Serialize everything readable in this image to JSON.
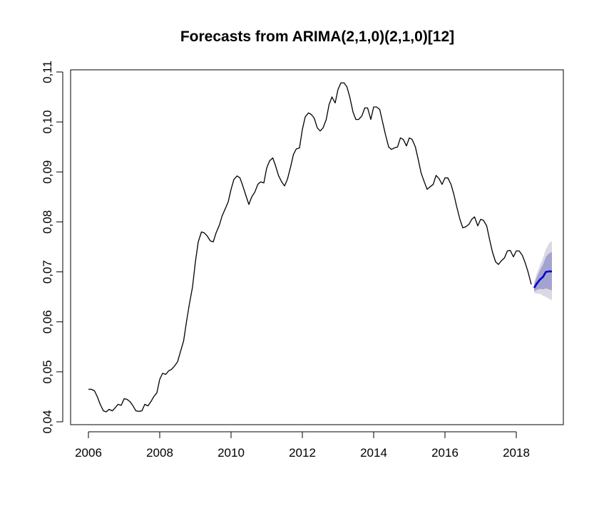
{
  "chart_data": {
    "type": "line",
    "title": "Forecasts from ARIMA(2,1,0)(2,1,0)[12]",
    "xlabel": "",
    "ylabel": "",
    "xlim": [
      2006,
      2019.0
    ],
    "ylim": [
      0.04,
      0.11
    ],
    "x_ticks": [
      2006,
      2008,
      2010,
      2012,
      2014,
      2016,
      2018
    ],
    "x_tick_labels": [
      "2006",
      "2008",
      "2010",
      "2012",
      "2014",
      "2016",
      "2018"
    ],
    "y_ticks": [
      0.04,
      0.05,
      0.06,
      0.07,
      0.08,
      0.09,
      0.1,
      0.11
    ],
    "y_tick_labels": [
      "0,04",
      "0,05",
      "0,06",
      "0,07",
      "0,08",
      "0,09",
      "0,10",
      "0,11"
    ],
    "grid": false,
    "legend": "none",
    "colors": {
      "history": "#000000",
      "forecast": "#0000cc",
      "band80": "#a3a3cf",
      "band95": "#d9d9e4"
    },
    "series": [
      {
        "role": "observed",
        "x": [
          2006.0,
          2006.08,
          2006.17,
          2006.25,
          2006.33,
          2006.42,
          2006.5,
          2006.58,
          2006.67,
          2006.75,
          2006.83,
          2006.92,
          2007.0,
          2007.08,
          2007.17,
          2007.25,
          2007.33,
          2007.42,
          2007.5,
          2007.58,
          2007.67,
          2007.75,
          2007.83,
          2007.92,
          2008.0,
          2008.08,
          2008.17,
          2008.25,
          2008.33,
          2008.42,
          2008.5,
          2008.58,
          2008.67,
          2008.75,
          2008.83,
          2008.92,
          2009.0,
          2009.08,
          2009.17,
          2009.25,
          2009.33,
          2009.42,
          2009.5,
          2009.58,
          2009.67,
          2009.75,
          2009.83,
          2009.92,
          2010.0,
          2010.08,
          2010.17,
          2010.25,
          2010.33,
          2010.42,
          2010.5,
          2010.58,
          2010.67,
          2010.75,
          2010.83,
          2010.92,
          2011.0,
          2011.08,
          2011.17,
          2011.25,
          2011.33,
          2011.42,
          2011.5,
          2011.58,
          2011.67,
          2011.75,
          2011.83,
          2011.92,
          2012.0,
          2012.08,
          2012.17,
          2012.25,
          2012.33,
          2012.42,
          2012.5,
          2012.58,
          2012.67,
          2012.75,
          2012.83,
          2012.92,
          2013.0,
          2013.08,
          2013.17,
          2013.25,
          2013.33,
          2013.42,
          2013.5,
          2013.58,
          2013.67,
          2013.75,
          2013.83,
          2013.92,
          2014.0,
          2014.08,
          2014.17,
          2014.25,
          2014.33,
          2014.42,
          2014.5,
          2014.58,
          2014.67,
          2014.75,
          2014.83,
          2014.92,
          2015.0,
          2015.08,
          2015.17,
          2015.25,
          2015.33,
          2015.42,
          2015.5,
          2015.58,
          2015.67,
          2015.75,
          2015.83,
          2015.92,
          2016.0,
          2016.08,
          2016.17,
          2016.25,
          2016.33,
          2016.42,
          2016.5,
          2016.58,
          2016.67,
          2016.75,
          2016.83,
          2016.92,
          2017.0,
          2017.08,
          2017.17,
          2017.25,
          2017.33,
          2017.42,
          2017.5,
          2017.58,
          2017.67,
          2017.75,
          2017.83,
          2017.92,
          2018.0,
          2018.08,
          2018.17,
          2018.25,
          2018.33,
          2018.42
        ],
        "y": [
          0.0465,
          0.0465,
          0.0462,
          0.045,
          0.0435,
          0.0422,
          0.042,
          0.0425,
          0.0422,
          0.0428,
          0.0435,
          0.0433,
          0.0446,
          0.0445,
          0.044,
          0.0432,
          0.0422,
          0.0421,
          0.0422,
          0.0435,
          0.0432,
          0.044,
          0.045,
          0.0458,
          0.0485,
          0.0497,
          0.0495,
          0.0502,
          0.0505,
          0.0512,
          0.052,
          0.054,
          0.0562,
          0.06,
          0.0635,
          0.067,
          0.072,
          0.076,
          0.078,
          0.0778,
          0.0772,
          0.0762,
          0.076,
          0.0778,
          0.0793,
          0.0812,
          0.0825,
          0.084,
          0.0865,
          0.0885,
          0.0892,
          0.0888,
          0.0872,
          0.0852,
          0.0835,
          0.085,
          0.086,
          0.0875,
          0.088,
          0.0878,
          0.0908,
          0.0922,
          0.0928,
          0.0912,
          0.0893,
          0.088,
          0.0872,
          0.0885,
          0.091,
          0.0935,
          0.0946,
          0.0948,
          0.0985,
          0.101,
          0.1018,
          0.1015,
          0.1008,
          0.0988,
          0.0982,
          0.0988,
          0.1005,
          0.1035,
          0.105,
          0.1038,
          0.1065,
          0.1078,
          0.1078,
          0.107,
          0.105,
          0.102,
          0.1005,
          0.1005,
          0.1012,
          0.1028,
          0.1028,
          0.1005,
          0.103,
          0.103,
          0.1025,
          0.1,
          0.0975,
          0.095,
          0.0945,
          0.0948,
          0.095,
          0.0968,
          0.0965,
          0.0952,
          0.0968,
          0.0965,
          0.095,
          0.0925,
          0.0898,
          0.088,
          0.0865,
          0.087,
          0.0875,
          0.0893,
          0.0887,
          0.0875,
          0.0888,
          0.0888,
          0.0875,
          0.0855,
          0.083,
          0.0805,
          0.0788,
          0.079,
          0.0795,
          0.0805,
          0.081,
          0.0792,
          0.0805,
          0.0803,
          0.0792,
          0.0765,
          0.074,
          0.072,
          0.0715,
          0.0722,
          0.0728,
          0.0742,
          0.0743,
          0.073,
          0.0742,
          0.0742,
          0.0733,
          0.0718,
          0.07,
          0.0675
        ]
      },
      {
        "role": "forecast",
        "x": [
          2018.5,
          2018.58,
          2018.67,
          2018.75,
          2018.83,
          2018.92,
          2019.0
        ],
        "y": [
          0.0668,
          0.0677,
          0.0685,
          0.069,
          0.07,
          0.0701,
          0.0701
        ],
        "lo80": [
          0.0661,
          0.0664,
          0.0666,
          0.0665,
          0.0667,
          0.0665,
          0.0663
        ],
        "hi80": [
          0.0675,
          0.069,
          0.0704,
          0.0715,
          0.073,
          0.0737,
          0.074
        ],
        "lo95": [
          0.0658,
          0.0656,
          0.0656,
          0.0652,
          0.065,
          0.0646,
          0.0643
        ],
        "hi95": [
          0.0679,
          0.0698,
          0.0714,
          0.0728,
          0.0745,
          0.0757,
          0.0762
        ]
      }
    ]
  }
}
